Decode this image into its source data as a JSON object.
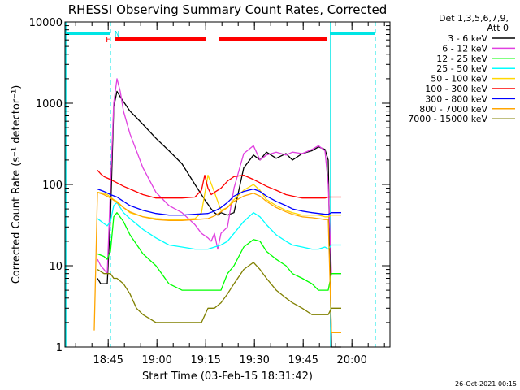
{
  "chart_data": {
    "type": "line",
    "title": "RHESSI Observing Summary Count Rates, Corrected",
    "xlabel": "Start Time (03-Feb-15 18:31:42)",
    "ylabel": "Corrected Count Rate (s⁻¹ detector⁻¹)",
    "y_scale": "log",
    "ylim": [
      1,
      10000
    ],
    "xlim_minutes_from_start": [
      0,
      100
    ],
    "x_ticks": [
      {
        "label": "18:45",
        "min": 13.3
      },
      {
        "label": "19:00",
        "min": 28.3
      },
      {
        "label": "19:15",
        "min": 43.3
      },
      {
        "label": "19:30",
        "min": 58.3
      },
      {
        "label": "19:45",
        "min": 73.3
      },
      {
        "label": "20:00",
        "min": 88.3
      }
    ],
    "y_ticks": [
      {
        "label": "1",
        "v": 1
      },
      {
        "label": "10",
        "v": 10
      },
      {
        "label": "100",
        "v": 100
      },
      {
        "label": "1000",
        "v": 1000
      },
      {
        "label": "10000",
        "v": 10000
      }
    ],
    "legend": {
      "header": [
        "Det 1,3,5,6,7,9,",
        "Att 0"
      ],
      "placement": "right"
    },
    "flags": {
      "N_label": "N",
      "F_label": "F",
      "night_segments": [
        [
          0,
          14.0
        ],
        [
          81.5,
          95.5
        ]
      ],
      "flare_segments": [
        [
          15.5,
          43.5
        ],
        [
          47.5,
          80.5
        ]
      ],
      "cyan_boundaries": [
        0,
        81.5
      ],
      "dashed_boundaries": [
        14.0,
        95.5
      ]
    },
    "series": [
      {
        "name": "3 - 6 keV",
        "color": "#000000",
        "x": [
          10,
          11,
          12,
          13,
          14,
          15,
          16,
          17,
          20,
          24,
          28,
          32,
          36,
          40,
          43,
          45,
          46,
          47,
          48,
          50,
          52,
          55,
          58,
          60,
          62,
          65,
          68,
          70,
          73,
          76,
          78,
          80,
          81,
          82,
          85
        ],
        "y": [
          7,
          6,
          6,
          6,
          40,
          900,
          1400,
          1200,
          800,
          550,
          370,
          260,
          180,
          100,
          65,
          50,
          45,
          42,
          45,
          42,
          45,
          160,
          230,
          200,
          250,
          210,
          240,
          200,
          240,
          260,
          290,
          270,
          200,
          1,
          1
        ]
      },
      {
        "name": "6 - 12 keV",
        "color": "#e040e0",
        "x": [
          10,
          11,
          12,
          13,
          14,
          15,
          16,
          17,
          18,
          20,
          24,
          28,
          32,
          36,
          40,
          42,
          44,
          45,
          46,
          47,
          48,
          50,
          52,
          55,
          58,
          60,
          62,
          65,
          68,
          70,
          73,
          76,
          78,
          80,
          81,
          82,
          85
        ],
        "y": [
          12,
          10,
          9,
          8,
          90,
          1000,
          2000,
          1400,
          800,
          420,
          160,
          80,
          55,
          45,
          32,
          25,
          22,
          20,
          25,
          16,
          25,
          30,
          90,
          240,
          300,
          200,
          230,
          250,
          230,
          250,
          240,
          270,
          300,
          260,
          100,
          8,
          8
        ]
      },
      {
        "name": "12 - 25 keV",
        "color": "#00ff00",
        "x": [
          10,
          12,
          13,
          14,
          15,
          16,
          18,
          20,
          24,
          28,
          32,
          36,
          40,
          42,
          44,
          46,
          48,
          50,
          52,
          55,
          58,
          60,
          62,
          65,
          68,
          70,
          73,
          76,
          78,
          80,
          81,
          82,
          85
        ],
        "y": [
          14,
          13,
          12,
          15,
          40,
          45,
          35,
          24,
          14,
          10,
          6,
          5,
          5,
          5,
          5,
          5,
          5,
          8,
          10,
          17,
          21,
          20,
          15,
          12,
          10,
          8,
          7,
          6,
          5,
          5,
          5,
          8,
          8
        ]
      },
      {
        "name": "25 - 50 keV",
        "color": "#00ffff",
        "x": [
          10,
          12,
          13,
          14,
          15,
          16,
          18,
          20,
          24,
          28,
          32,
          36,
          40,
          44,
          46,
          48,
          50,
          52,
          55,
          58,
          60,
          62,
          65,
          68,
          70,
          73,
          76,
          78,
          80,
          81,
          82,
          85
        ],
        "y": [
          38,
          33,
          31,
          35,
          55,
          60,
          45,
          38,
          28,
          22,
          18,
          17,
          16,
          16,
          17,
          18,
          20,
          25,
          35,
          45,
          40,
          32,
          24,
          20,
          18,
          17,
          16,
          16,
          17,
          16,
          18,
          18
        ]
      },
      {
        "name": "50 - 100 keV",
        "color": "#ffd700",
        "x": [
          10,
          12,
          13,
          14,
          15,
          16,
          18,
          20,
          24,
          28,
          32,
          36,
          40,
          42,
          44,
          46,
          48,
          50,
          52,
          55,
          58,
          60,
          62,
          65,
          68,
          70,
          73,
          76,
          78,
          80,
          81,
          82,
          85
        ],
        "y": [
          80,
          78,
          75,
          70,
          65,
          62,
          52,
          45,
          40,
          38,
          37,
          37,
          38,
          45,
          130,
          80,
          48,
          52,
          65,
          85,
          100,
          85,
          65,
          55,
          48,
          45,
          42,
          42,
          42,
          40,
          40,
          42,
          42
        ]
      },
      {
        "name": "100 - 300 keV",
        "color": "#ff0000",
        "x": [
          10,
          11,
          12,
          13,
          14,
          15,
          16,
          18,
          20,
          24,
          28,
          32,
          36,
          40,
          42,
          43,
          44,
          45,
          46,
          48,
          50,
          52,
          55,
          58,
          60,
          62,
          65,
          68,
          70,
          73,
          76,
          78,
          80,
          81,
          82,
          85
        ],
        "y": [
          150,
          135,
          125,
          120,
          115,
          110,
          105,
          95,
          88,
          75,
          68,
          68,
          68,
          70,
          85,
          130,
          90,
          75,
          80,
          90,
          110,
          125,
          130,
          115,
          105,
          95,
          85,
          75,
          72,
          68,
          68,
          68,
          68,
          70,
          70,
          70
        ]
      },
      {
        "name": "300 - 800 keV",
        "color": "#0000ff",
        "x": [
          10,
          12,
          14,
          16,
          18,
          20,
          24,
          28,
          32,
          36,
          40,
          44,
          46,
          48,
          50,
          52,
          55,
          58,
          60,
          62,
          65,
          68,
          70,
          73,
          76,
          78,
          80,
          81,
          82,
          85
        ],
        "y": [
          88,
          82,
          75,
          70,
          62,
          55,
          48,
          44,
          42,
          42,
          43,
          44,
          47,
          52,
          60,
          72,
          82,
          88,
          82,
          72,
          62,
          55,
          50,
          47,
          45,
          44,
          43,
          43,
          45,
          45
        ]
      },
      {
        "name": "800 - 7000 keV",
        "color": "#ffa500",
        "x": [
          9,
          10,
          12,
          14,
          16,
          18,
          20,
          24,
          28,
          32,
          36,
          40,
          44,
          46,
          48,
          50,
          52,
          55,
          58,
          60,
          62,
          65,
          68,
          70,
          73,
          76,
          78,
          80,
          81,
          82,
          85
        ],
        "y": [
          1.6,
          80,
          75,
          68,
          60,
          52,
          46,
          40,
          37,
          36,
          36,
          37,
          38,
          41,
          46,
          52,
          62,
          72,
          78,
          72,
          62,
          52,
          46,
          43,
          40,
          39,
          38,
          37,
          37,
          1.5,
          1.5
        ]
      },
      {
        "name": "7000 - 15000 keV",
        "color": "#808000",
        "x": [
          10,
          12,
          13,
          14,
          15,
          16,
          18,
          20,
          22,
          24,
          28,
          32,
          36,
          40,
          42,
          44,
          46,
          48,
          50,
          52,
          55,
          58,
          60,
          62,
          65,
          68,
          70,
          73,
          76,
          78,
          80,
          81,
          82,
          85
        ],
        "y": [
          9,
          8,
          8,
          8,
          7,
          7,
          6,
          4.5,
          3,
          2.5,
          2,
          2,
          2,
          2,
          2,
          3,
          3,
          3.5,
          4.5,
          6,
          9,
          11,
          9,
          7,
          5,
          4,
          3.5,
          3,
          2.5,
          2.5,
          2.5,
          2.5,
          3,
          3
        ]
      }
    ],
    "annotation": "26-Oct-2021 00:15"
  }
}
